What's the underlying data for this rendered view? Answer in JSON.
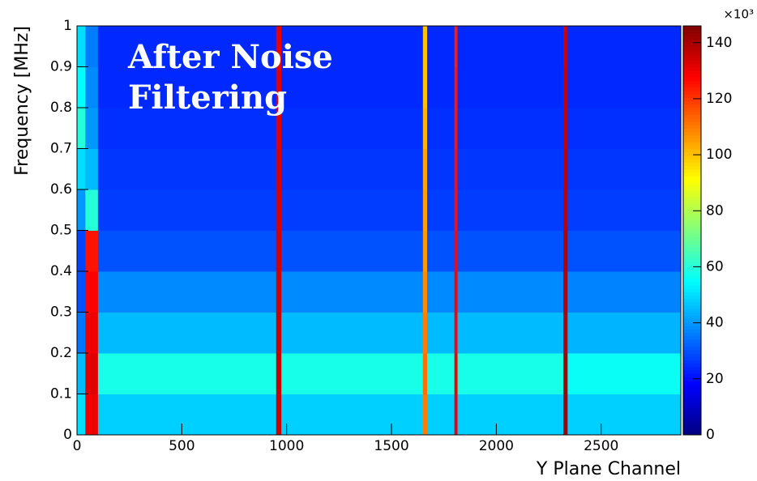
{
  "chart_data": {
    "type": "heatmap",
    "annotation": [
      "After Noise",
      "Filtering"
    ],
    "x_label": "Y Plane Channel",
    "y_label": "Frequency [MHz]",
    "z_scale_label": "×10³",
    "colormap": "jet",
    "x_bins": [
      0,
      40,
      100,
      950,
      975,
      1650,
      1670,
      1800,
      1815,
      2320,
      2340,
      2880
    ],
    "y_bins": [
      0,
      0.1,
      0.2,
      0.3,
      0.4,
      0.5,
      0.6,
      0.7,
      0.8,
      0.9,
      1
    ],
    "z": [
      [
        50,
        130,
        48,
        135,
        48,
        110,
        48,
        130,
        48,
        140,
        48
      ],
      [
        45,
        132,
        58,
        136,
        58,
        112,
        58,
        130,
        58,
        140,
        56
      ],
      [
        35,
        130,
        45,
        135,
        45,
        110,
        45,
        128,
        45,
        138,
        44
      ],
      [
        30,
        128,
        38,
        134,
        38,
        108,
        38,
        128,
        38,
        138,
        37
      ],
      [
        28,
        125,
        30,
        134,
        30,
        106,
        30,
        127,
        30,
        138,
        30
      ],
      [
        40,
        60,
        27,
        133,
        27,
        105,
        27,
        126,
        27,
        137,
        27
      ],
      [
        50,
        45,
        26,
        133,
        26,
        104,
        26,
        126,
        26,
        137,
        26
      ],
      [
        60,
        40,
        25,
        132,
        25,
        102,
        25,
        125,
        25,
        136,
        25
      ],
      [
        55,
        38,
        24,
        132,
        24,
        100,
        24,
        125,
        24,
        136,
        24
      ],
      [
        50,
        36,
        24,
        131,
        24,
        100,
        24,
        124,
        24,
        135,
        24
      ]
    ],
    "xlim": [
      0,
      2880
    ],
    "ylim": [
      0,
      1
    ],
    "zlim": [
      0,
      146
    ],
    "xticks": [
      0,
      500,
      1000,
      1500,
      2000,
      2500
    ],
    "yticks": [
      0,
      0.1,
      0.2,
      0.3,
      0.4,
      0.5,
      0.6,
      0.7,
      0.8,
      0.9,
      1
    ],
    "zticks": [
      0,
      20,
      40,
      60,
      80,
      100,
      120,
      140
    ]
  }
}
